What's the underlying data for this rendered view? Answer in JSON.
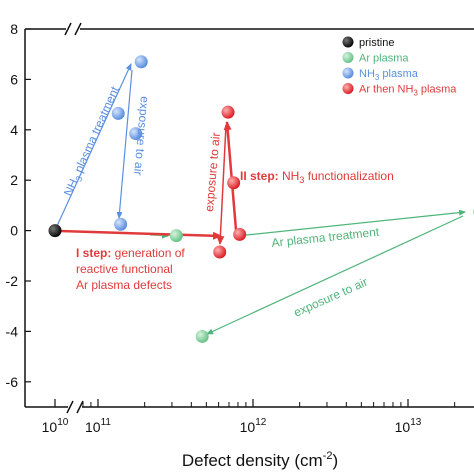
{
  "chart_data": {
    "type": "scatter",
    "title": "",
    "xlabel": "Defect density (cm",
    "xlabel_sup": "-2",
    "xlabel_tail": ")",
    "ylabel": "",
    "x_scale": "log, broken",
    "ylim": [
      -7,
      8
    ],
    "y_ticks": [
      "8",
      "6",
      "4",
      "2",
      "0",
      "-2",
      "-4",
      "-6"
    ],
    "x_ticks": [
      "10",
      "10",
      "10",
      "10"
    ],
    "x_tick_exponents": [
      "10",
      "11",
      "12",
      "13"
    ],
    "grid": false,
    "legend_position": "top-right",
    "colors": {
      "pristine": "#111111",
      "ar_plasma": "#7fcf9a",
      "nh3_plasma": "#6a9ee8",
      "ar_then_nh3": "#e8343a",
      "ar_line": "#4fb57a",
      "blue_line": "#5b8fe0",
      "red_line": "#e03a3a"
    },
    "legend": [
      {
        "label": "pristine",
        "label_sub": "",
        "label_tail": "",
        "color_key": "pristine"
      },
      {
        "label": "Ar plasma",
        "label_sub": "",
        "label_tail": "",
        "color_key": "ar_plasma"
      },
      {
        "label": "NH",
        "label_sub": "3",
        "label_tail": " plasma",
        "color_key": "nh3_plasma"
      },
      {
        "label": "Ar then NH",
        "label_sub": "3",
        "label_tail": " plasma",
        "color_key": "ar_then_nh3"
      }
    ],
    "series": [
      {
        "name": "pristine",
        "color_key": "pristine",
        "points": [
          {
            "x": 10000000000.0,
            "y": 0.0
          }
        ]
      },
      {
        "name": "Ar plasma",
        "color_key": "ar_plasma",
        "points": [
          {
            "x": 320000000000.0,
            "y": -0.2
          },
          {
            "x": 29000000000000.0,
            "y": 0.75
          },
          {
            "x": 470000000000.0,
            "y": -4.2
          }
        ]
      },
      {
        "name": "NH3 plasma",
        "color_key": "nh3_plasma",
        "points": [
          {
            "x": 190000000000.0,
            "y": 6.7
          },
          {
            "x": 135000000000.0,
            "y": 4.65
          },
          {
            "x": 175000000000.0,
            "y": 3.85
          },
          {
            "x": 140000000000.0,
            "y": 0.25
          }
        ]
      },
      {
        "name": "Ar then NH3 plasma",
        "color_key": "ar_then_nh3",
        "points": [
          {
            "x": 690000000000.0,
            "y": 4.7
          },
          {
            "x": 750000000000.0,
            "y": 1.9
          },
          {
            "x": 820000000000.0,
            "y": -0.15
          },
          {
            "x": 610000000000.0,
            "y": -0.85
          }
        ]
      }
    ],
    "annotations": [
      {
        "id": "nh3_treatment",
        "parts": [
          {
            "t": "NH"
          },
          {
            "t": "3",
            "sub": true
          },
          {
            "t": " plasma treatment"
          }
        ],
        "color_key": "blue_line"
      },
      {
        "id": "blue_air",
        "parts": [
          {
            "t": "exposure to air"
          }
        ],
        "color_key": "blue_line"
      },
      {
        "id": "red_air",
        "parts": [
          {
            "t": "exposure to air"
          }
        ],
        "color_key": "red_line"
      },
      {
        "id": "step2",
        "parts": [
          {
            "t": "II step:",
            "bold": true
          },
          {
            "t": " NH"
          },
          {
            "t": "3",
            "sub": true
          },
          {
            "t": " functionalization"
          }
        ],
        "color_key": "red_line"
      },
      {
        "id": "step1a",
        "parts": [
          {
            "t": "I step:",
            "bold": true
          },
          {
            "t": " generation of"
          }
        ],
        "color_key": "red_line"
      },
      {
        "id": "step1b",
        "parts": [
          {
            "t": "reactive functional"
          }
        ],
        "color_key": "red_line"
      },
      {
        "id": "step1c",
        "parts": [
          {
            "t": "Ar plasma defects"
          }
        ],
        "color_key": "red_line"
      },
      {
        "id": "ar_treatment",
        "parts": [
          {
            "t": "Ar plasma treatment"
          }
        ],
        "color_key": "ar_line"
      },
      {
        "id": "ar_air",
        "parts": [
          {
            "t": "exposure to air"
          }
        ],
        "color_key": "ar_line"
      }
    ]
  }
}
